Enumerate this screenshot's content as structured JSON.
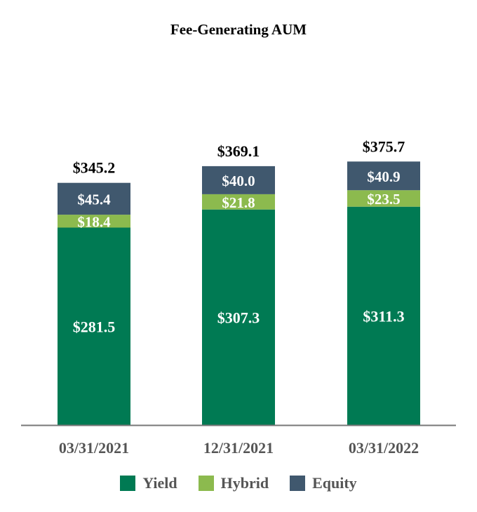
{
  "chart_data": {
    "type": "bar",
    "stacked": true,
    "title": "Fee-Generating AUM",
    "categories": [
      "03/31/2021",
      "12/31/2021",
      "03/31/2022"
    ],
    "series": [
      {
        "name": "Yield",
        "values": [
          281.5,
          307.3,
          311.3
        ],
        "color": "#007A53",
        "labels": [
          "$281.5",
          "$307.3",
          "$311.3"
        ]
      },
      {
        "name": "Hybrid",
        "values": [
          18.4,
          21.8,
          23.5
        ],
        "color": "#8CBA4E",
        "labels": [
          "$18.4",
          "$21.8",
          "$23.5"
        ]
      },
      {
        "name": "Equity",
        "values": [
          45.4,
          40.0,
          40.9
        ],
        "color": "#40586E",
        "labels": [
          "$45.4",
          "$40.0",
          "$40.9"
        ]
      }
    ],
    "totals": [
      "$345.2",
      "$369.1",
      "$375.7"
    ],
    "legend_position": "bottom",
    "grid": false
  }
}
